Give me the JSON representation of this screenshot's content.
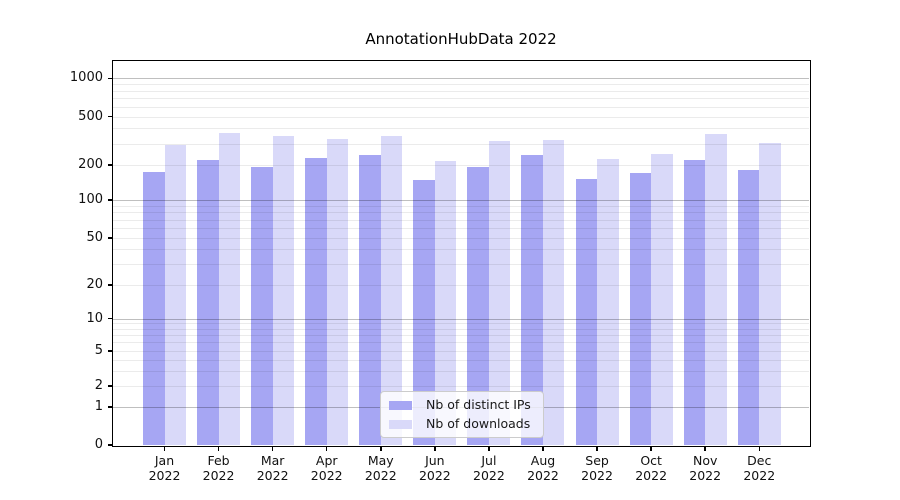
{
  "title": "AnnotationHubData 2022",
  "chart_data": {
    "type": "bar",
    "title": "AnnotationHubData 2022",
    "categories": [
      "Jan 2022",
      "Feb 2022",
      "Mar 2022",
      "Apr 2022",
      "May 2022",
      "Jun 2022",
      "Jul 2022",
      "Aug 2022",
      "Sep 2022",
      "Oct 2022",
      "Nov 2022",
      "Dec 2022"
    ],
    "series": [
      {
        "name": "Nb of distinct IPs",
        "color": "#a6a6f3",
        "values": [
          175,
          218,
          192,
          228,
          243,
          150,
          194,
          242,
          151,
          172,
          222,
          183
        ]
      },
      {
        "name": "Nb of downloads",
        "color": "#d9d9f9",
        "values": [
          295,
          368,
          345,
          330,
          350,
          215,
          316,
          322,
          226,
          245,
          357,
          306
        ]
      }
    ],
    "yscale": "symlog",
    "ylim": [
      0,
      1370
    ],
    "yticks": [
      1000,
      500,
      200,
      100,
      50,
      20,
      10,
      5,
      2,
      1,
      0
    ],
    "grid": true,
    "legend_position": "lower center"
  },
  "legend": {
    "items": [
      "Nb of distinct IPs",
      "Nb of downloads"
    ]
  }
}
